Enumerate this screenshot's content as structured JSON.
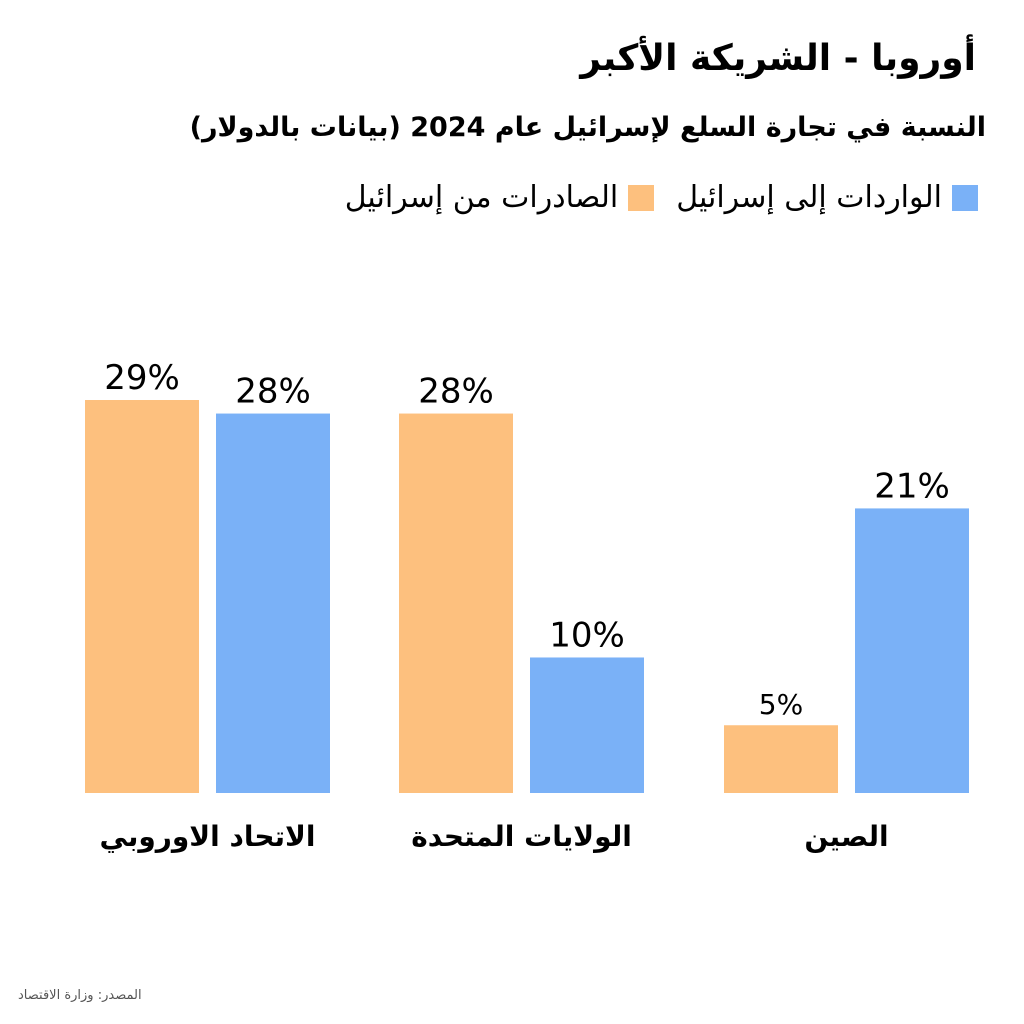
{
  "chart_data": {
    "type": "bar",
    "title": "أوروبا - الشريكة الأكبر",
    "subtitle": "النسبة في تجارة السلع لإسرائيل عام 2024 (بيانات بالدولار)",
    "categories": [
      "الاتحاد الاوروبي",
      "الولايات المتحدة",
      "الصين"
    ],
    "series": [
      {
        "name": "الصادرات من إسرائيل",
        "values": [
          29,
          28,
          5
        ],
        "labels": [
          "29%",
          "28%",
          "5%"
        ],
        "color": "#FDC07E"
      },
      {
        "name": "الواردات إلى إسرائيل",
        "values": [
          28,
          10,
          21
        ],
        "labels": [
          "28%",
          "10%",
          "21%"
        ],
        "color": "#7AB1F7"
      }
    ],
    "ylim": [
      0,
      29
    ],
    "grid": false,
    "legend_position": "top-right"
  },
  "source": "المصدر: وزارة الاقتصاد"
}
